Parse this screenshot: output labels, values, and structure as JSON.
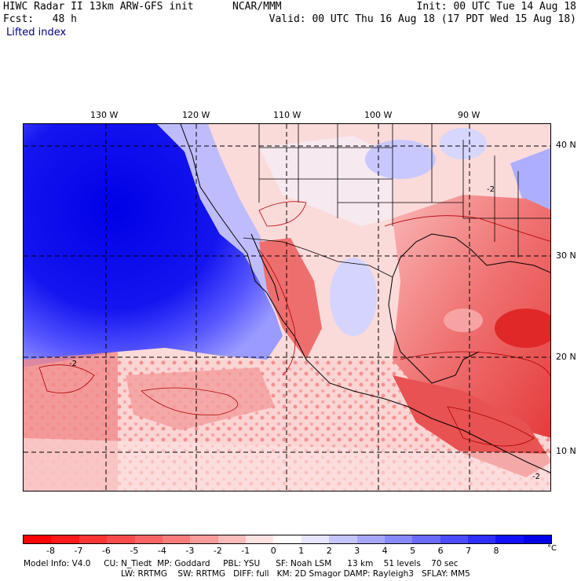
{
  "header": {
    "model_title": "HIWC Radar II 13km ARW-GFS init",
    "center": "NCAR/MMM",
    "init": "Init: 00 UTC Tue 14 Aug 18",
    "fcst": "Fcst:   48 h",
    "valid": "Valid: 00 UTC Thu 16 Aug 18 (17 PDT Wed 15 Aug 18)",
    "field": "Lifted index"
  },
  "map": {
    "longitude_labels": [
      "130 W",
      "120 W",
      "110 W",
      "100 W",
      "90 W"
    ],
    "latitude_labels": [
      "40 N",
      "30 N",
      "20 N",
      "10 N"
    ],
    "contour_labels": [
      "-2",
      "-2",
      "-2"
    ],
    "colors": {
      "ocean_stable": "#1a1aff",
      "deep_blue": "#0000e0",
      "unstable_red": "#e84848",
      "very_unstable": "#e02020"
    }
  },
  "colorbar": {
    "labels": [
      "-8",
      "-7",
      "-6",
      "-5",
      "-4",
      "-3",
      "-2",
      "-1",
      "0",
      "1",
      "2",
      "3",
      "4",
      "5",
      "6",
      "7",
      "8"
    ],
    "unit": "°C",
    "colors": [
      "#ff0000",
      "#ff1a1a",
      "#ff3535",
      "#f84c4c",
      "#f86464",
      "#f87c7c",
      "#fa9a9a",
      "#fcbcbc",
      "#fde2e2",
      "#ffffff",
      "#e6e6ff",
      "#c4c4ff",
      "#a6a6ff",
      "#8888ff",
      "#6a6aff",
      "#4c4cff",
      "#2e2eff",
      "#1010ff",
      "#0000e6"
    ]
  },
  "footer": {
    "line1": "Model Info: V4.0     CU: N_Tiedt  MP: Goddard     PBL: YSU      SF: Noah LSM      13 km    51 levels    70 sec",
    "line2": "LW: RRTMG    SW: RRTMG   DIFF: full   KM: 2D Smagor DAMP: Rayleigh3   SFLAY: MM5"
  }
}
